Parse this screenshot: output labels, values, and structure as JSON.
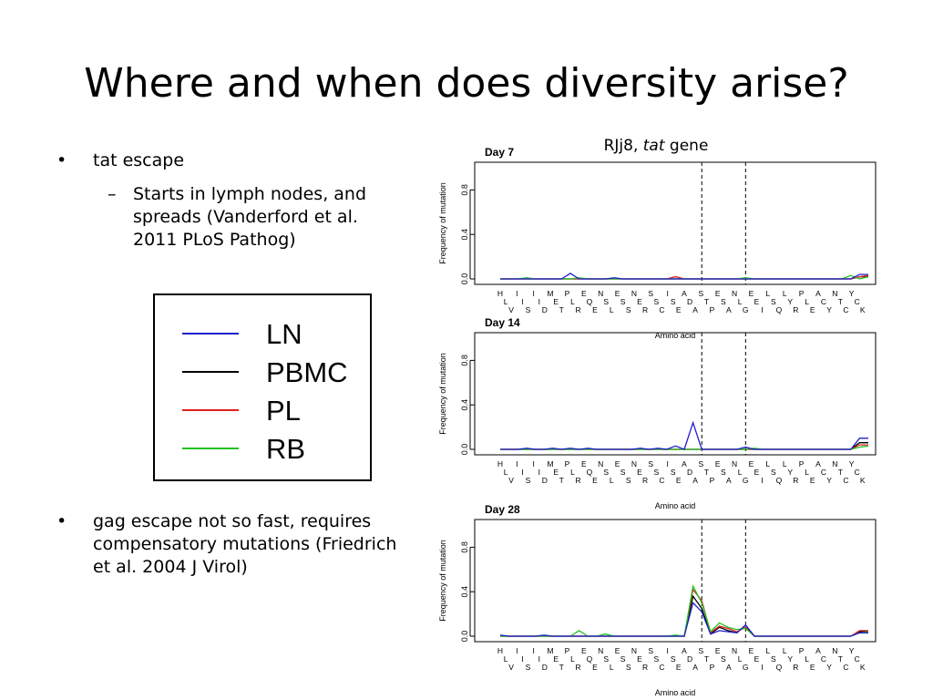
{
  "slide": {
    "title": "Where and when does diversity arise?",
    "bullets": [
      {
        "text": "tat escape"
      },
      {
        "text": "gag escape not so fast, requires compensatory mutations (Friedrich et al.  2004 J Virol)"
      }
    ],
    "sub_bullets": [
      {
        "text": "Starts in lymph nodes, and spreads (Vanderford et al. 2011 PLoS Pathog)"
      }
    ],
    "bullet_marker": "•",
    "sub_marker": "–"
  },
  "legend": {
    "entries": [
      {
        "label": "LN",
        "color": "#1f1fcc"
      },
      {
        "label": "PBMC",
        "color": "#000000"
      },
      {
        "label": "PL",
        "color": "#e01f1f"
      },
      {
        "label": "RB",
        "color": "#22c322"
      }
    ]
  },
  "chart_header": {
    "prefix": "RJj8, ",
    "gene": "tat",
    "suffix": " gene"
  },
  "chart_data": [
    {
      "type": "line",
      "title": "Day 7",
      "xlabel": "Amino acid",
      "ylabel": "Frequency of mutation",
      "ylim": [
        0,
        1
      ],
      "yticks": [
        "0.0",
        "0.4",
        "0.8"
      ],
      "aa_row1": [
        "H",
        "I",
        "I",
        "M",
        "P",
        "E",
        "N",
        "E",
        "N",
        "S",
        "I",
        "A",
        "S",
        "E",
        "N",
        "E",
        "L",
        "L",
        "P",
        "A",
        "N",
        "Y"
      ],
      "aa_row2": [
        "L",
        "I",
        "I",
        "E",
        "L",
        "Q",
        "S",
        "S",
        "E",
        "S",
        "S",
        "D",
        "T",
        "S",
        "L",
        "E",
        "S",
        "Y",
        "L",
        "C",
        "T",
        "C"
      ],
      "aa_row3": [
        "V",
        "S",
        "D",
        "T",
        "R",
        "E",
        "L",
        "S",
        "R",
        "C",
        "E",
        "A",
        "P",
        "A",
        "G",
        "I",
        "Q",
        "R",
        "E",
        "Y",
        "C",
        "K"
      ],
      "dashed_positions": [
        23,
        28
      ],
      "series": [
        {
          "name": "LN",
          "values": [
            0,
            0,
            0,
            0,
            0,
            0,
            0,
            0,
            0.05,
            0,
            0,
            0,
            0,
            0.01,
            0,
            0,
            0,
            0,
            0,
            0,
            0,
            0,
            0,
            0,
            0,
            0,
            0,
            0,
            0,
            0,
            0,
            0,
            0,
            0,
            0,
            0,
            0,
            0,
            0,
            0,
            0,
            0.04,
            0.04
          ]
        },
        {
          "name": "PBMC",
          "values": [
            0,
            0,
            0,
            0,
            0,
            0,
            0,
            0,
            0,
            0,
            0,
            0,
            0,
            0,
            0,
            0,
            0,
            0,
            0,
            0,
            0,
            0,
            0,
            0,
            0,
            0,
            0,
            0,
            0,
            0,
            0,
            0,
            0,
            0,
            0,
            0,
            0,
            0,
            0,
            0,
            0,
            0.02,
            0.02
          ]
        },
        {
          "name": "PL",
          "values": [
            0,
            0,
            0,
            0,
            0,
            0,
            0,
            0,
            0,
            0,
            0,
            0,
            0,
            0,
            0,
            0,
            0,
            0,
            0,
            0,
            0.02,
            0,
            0,
            0,
            0,
            0,
            0,
            0,
            0,
            0,
            0,
            0,
            0,
            0,
            0,
            0,
            0,
            0,
            0,
            0,
            0,
            0.02,
            0.03
          ]
        },
        {
          "name": "RB",
          "values": [
            0,
            0,
            0,
            0.01,
            0,
            0,
            0,
            0,
            0,
            0.01,
            0,
            0,
            0,
            0,
            0,
            0,
            0,
            0,
            0,
            0,
            0,
            0,
            0,
            0,
            0,
            0,
            0,
            0,
            0.01,
            0,
            0,
            0,
            0,
            0,
            0,
            0,
            0,
            0,
            0,
            0,
            0.03,
            0,
            0.02
          ]
        }
      ]
    },
    {
      "type": "line",
      "title": "Day 14",
      "xlabel": "Amino acid",
      "ylabel": "Frequency of mutation",
      "ylim": [
        0,
        1
      ],
      "yticks": [
        "0.0",
        "0.4",
        "0.8"
      ],
      "aa_row1": [
        "H",
        "I",
        "I",
        "M",
        "P",
        "E",
        "N",
        "E",
        "N",
        "S",
        "I",
        "A",
        "S",
        "E",
        "N",
        "E",
        "L",
        "L",
        "P",
        "A",
        "N",
        "Y"
      ],
      "aa_row2": [
        "L",
        "I",
        "I",
        "E",
        "L",
        "Q",
        "S",
        "S",
        "E",
        "S",
        "S",
        "D",
        "T",
        "S",
        "L",
        "E",
        "S",
        "Y",
        "L",
        "C",
        "T",
        "C"
      ],
      "aa_row3": [
        "V",
        "S",
        "D",
        "T",
        "R",
        "E",
        "L",
        "S",
        "R",
        "C",
        "E",
        "A",
        "P",
        "A",
        "G",
        "I",
        "Q",
        "R",
        "E",
        "Y",
        "C",
        "K"
      ],
      "dashed_positions": [
        23,
        28
      ],
      "series": [
        {
          "name": "LN",
          "values": [
            0,
            0,
            0,
            0.01,
            0,
            0,
            0.01,
            0,
            0.01,
            0,
            0.01,
            0,
            0,
            0,
            0,
            0,
            0.01,
            0,
            0.01,
            0,
            0.03,
            0,
            0.24,
            0,
            0,
            0,
            0,
            0,
            0.02,
            0,
            0,
            0,
            0,
            0,
            0,
            0,
            0,
            0,
            0,
            0,
            0,
            0.1,
            0.1
          ]
        },
        {
          "name": "PBMC",
          "values": [
            0,
            0,
            0,
            0,
            0,
            0,
            0,
            0,
            0,
            0,
            0,
            0,
            0,
            0,
            0,
            0,
            0,
            0,
            0,
            0,
            0,
            0,
            0,
            0,
            0,
            0,
            0,
            0,
            0,
            0,
            0,
            0,
            0,
            0,
            0,
            0,
            0,
            0,
            0,
            0,
            0,
            0.06,
            0.06
          ]
        },
        {
          "name": "PL",
          "values": [
            0,
            0,
            0,
            0,
            0,
            0,
            0,
            0,
            0,
            0,
            0,
            0,
            0,
            0,
            0,
            0,
            0,
            0,
            0,
            0,
            0,
            0,
            0,
            0,
            0,
            0,
            0,
            0,
            0,
            0,
            0,
            0,
            0,
            0,
            0,
            0,
            0,
            0,
            0,
            0,
            0,
            0.04,
            0.04
          ]
        },
        {
          "name": "RB",
          "values": [
            0,
            0,
            0,
            0,
            0,
            0,
            0,
            0,
            0,
            0,
            0,
            0,
            0,
            0,
            0,
            0,
            0,
            0,
            0,
            0,
            0,
            0,
            0,
            0,
            0,
            0,
            0,
            0,
            0,
            0.01,
            0,
            0,
            0,
            0,
            0,
            0,
            0,
            0,
            0,
            0,
            0,
            0.02,
            0.03
          ]
        }
      ]
    },
    {
      "type": "line",
      "title": "Day 28",
      "xlabel": "Amino acid",
      "ylabel": "Frequency of mutation",
      "ylim": [
        0,
        1
      ],
      "yticks": [
        "0.0",
        "0.4",
        "0.8"
      ],
      "aa_row1": [
        "H",
        "I",
        "I",
        "M",
        "P",
        "E",
        "N",
        "E",
        "N",
        "S",
        "I",
        "A",
        "S",
        "E",
        "N",
        "E",
        "L",
        "L",
        "P",
        "A",
        "N",
        "Y"
      ],
      "aa_row2": [
        "L",
        "I",
        "I",
        "E",
        "L",
        "Q",
        "S",
        "S",
        "E",
        "S",
        "S",
        "D",
        "T",
        "S",
        "L",
        "E",
        "S",
        "Y",
        "L",
        "C",
        "T",
        "C"
      ],
      "aa_row3": [
        "V",
        "S",
        "D",
        "T",
        "R",
        "E",
        "L",
        "S",
        "R",
        "C",
        "E",
        "A",
        "P",
        "A",
        "G",
        "I",
        "Q",
        "R",
        "E",
        "Y",
        "C",
        "K"
      ],
      "dashed_positions": [
        23,
        28
      ],
      "series": [
        {
          "name": "LN",
          "values": [
            0.01,
            0,
            0,
            0,
            0,
            0.01,
            0,
            0,
            0,
            0,
            0,
            0,
            0,
            0,
            0,
            0,
            0,
            0,
            0,
            0,
            0,
            0,
            0.3,
            0.22,
            0.02,
            0.05,
            0.04,
            0.03,
            0.1,
            0,
            0,
            0,
            0,
            0,
            0,
            0,
            0,
            0,
            0,
            0,
            0,
            0.03,
            0.03
          ]
        },
        {
          "name": "PBMC",
          "values": [
            0,
            0,
            0,
            0,
            0,
            0,
            0,
            0,
            0,
            0,
            0,
            0,
            0,
            0,
            0,
            0,
            0,
            0,
            0,
            0,
            0,
            0,
            0.36,
            0.25,
            0.02,
            0.08,
            0.05,
            0.03,
            0.1,
            0,
            0,
            0,
            0,
            0,
            0,
            0,
            0,
            0,
            0,
            0,
            0,
            0.04,
            0.04
          ]
        },
        {
          "name": "PL",
          "values": [
            0,
            0,
            0,
            0,
            0,
            0,
            0,
            0,
            0,
            0,
            0,
            0,
            0,
            0,
            0,
            0,
            0,
            0,
            0,
            0,
            0,
            0,
            0.42,
            0.32,
            0.03,
            0.09,
            0.07,
            0.04,
            0.08,
            0,
            0,
            0,
            0,
            0,
            0,
            0,
            0,
            0,
            0,
            0,
            0,
            0.05,
            0.05
          ]
        },
        {
          "name": "RB",
          "values": [
            0,
            0,
            0,
            0,
            0,
            0,
            0,
            0,
            0,
            0.05,
            0,
            0,
            0.02,
            0,
            0,
            0,
            0,
            0,
            0,
            0,
            0.01,
            0,
            0.45,
            0.3,
            0.04,
            0.12,
            0.08,
            0.06,
            0.07,
            0,
            0,
            0,
            0,
            0,
            0,
            0,
            0,
            0,
            0,
            0,
            0,
            0.03,
            0.04
          ]
        }
      ]
    }
  ]
}
